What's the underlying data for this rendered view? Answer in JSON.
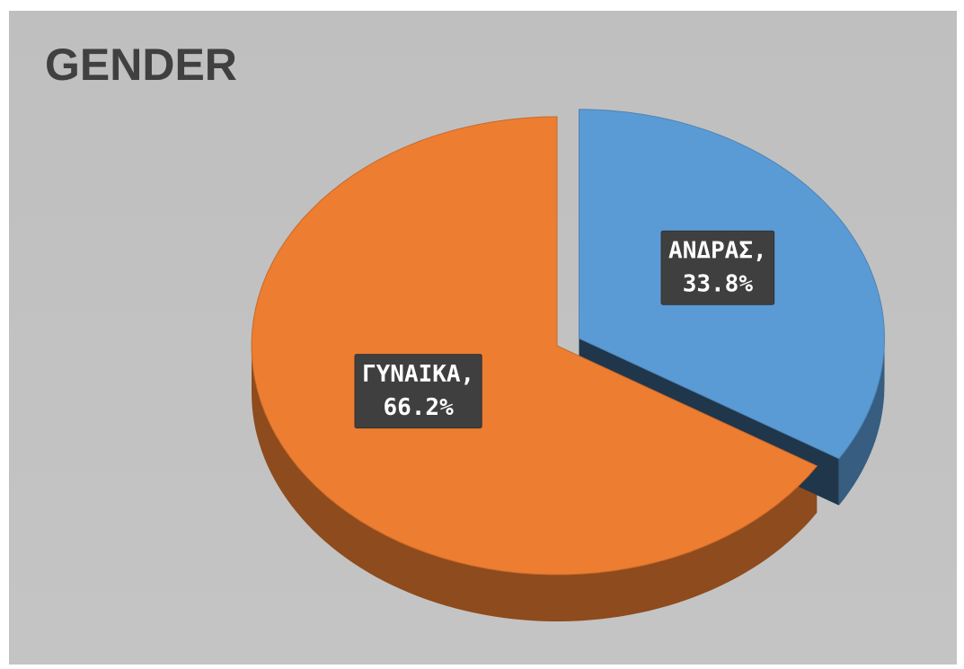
{
  "chart_data": {
    "type": "pie",
    "title": "GENDER",
    "categories": [
      "ΑΝΔΡΑΣ,",
      "ΓΥΝΑΙΚΑ,"
    ],
    "values": [
      33.8,
      66.2
    ],
    "value_labels": [
      "33.8%",
      "66.2%"
    ],
    "colors": [
      "#5b9bd5",
      "#ed7d31"
    ]
  }
}
